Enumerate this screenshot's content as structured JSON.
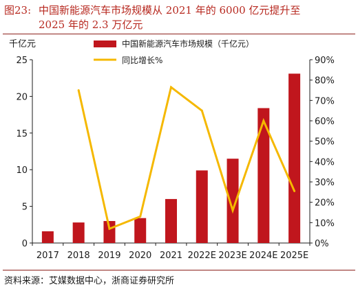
{
  "title": {
    "number": "图23:",
    "line1": "中国新能源汽车市场规模从 2021 年的 6000 亿元提升至",
    "line2": "2025 年的 2.3 万亿元"
  },
  "source": "资料来源：艾媒数据中心，浙商证券研究所",
  "colors": {
    "bar": "#c0161d",
    "line": "#f5b800",
    "title": "#b7281f",
    "rule": "#8c1f1a"
  },
  "chart_data": {
    "type": "bar+line",
    "categories": [
      "2017",
      "2018",
      "2019",
      "2020",
      "2021",
      "2022E",
      "2023E",
      "2024E",
      "2025E"
    ],
    "series": [
      {
        "name": "中国新能源汽车市场规模（千亿元）",
        "type": "bar",
        "axis": "left",
        "values": [
          1.6,
          2.8,
          3.0,
          3.4,
          6.0,
          9.9,
          11.5,
          18.4,
          23.1
        ]
      },
      {
        "name": "同比增长%",
        "type": "line",
        "axis": "right",
        "values": [
          null,
          75,
          7,
          13,
          76.5,
          65,
          16,
          60,
          25.5
        ]
      }
    ],
    "ylabel": "千亿元",
    "ylim": [
      0,
      25
    ],
    "yticks": [
      "0",
      "5",
      "10",
      "15",
      "20",
      "25"
    ],
    "y2lim": [
      0,
      90
    ],
    "y2ticks": [
      "0%",
      "10%",
      "20%",
      "30%",
      "40%",
      "50%",
      "60%",
      "70%",
      "80%",
      "90%"
    ],
    "grid": false,
    "legend": "top-center"
  }
}
